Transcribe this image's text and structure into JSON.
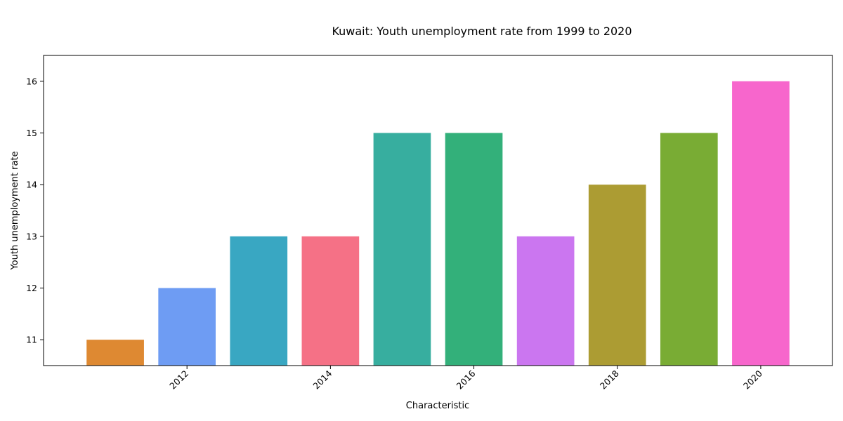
{
  "chart_data": {
    "type": "bar",
    "title": "Kuwait: Youth unemployment rate from 1999 to 2020",
    "xlabel": "Characteristic",
    "ylabel": "Youth unemployment rate",
    "x": [
      2011,
      2012,
      2013,
      2014,
      2015,
      2016,
      2017,
      2018,
      2019,
      2020
    ],
    "values": [
      11,
      12,
      13,
      13,
      15,
      15,
      13,
      14,
      15,
      16
    ],
    "colors": [
      "#de8932",
      "#6e9cf3",
      "#39a7c2",
      "#f57186",
      "#37ae9f",
      "#33b07a",
      "#cb76f0",
      "#ac9c33",
      "#79ac34",
      "#f766cc"
    ],
    "xticks": [
      2012,
      2014,
      2016,
      2018,
      2020
    ],
    "yticks": [
      11,
      12,
      13,
      14,
      15,
      16
    ],
    "xlim": [
      2010,
      2021
    ],
    "ylim": [
      10.5,
      16.5
    ],
    "grid": false,
    "legend": "none"
  }
}
